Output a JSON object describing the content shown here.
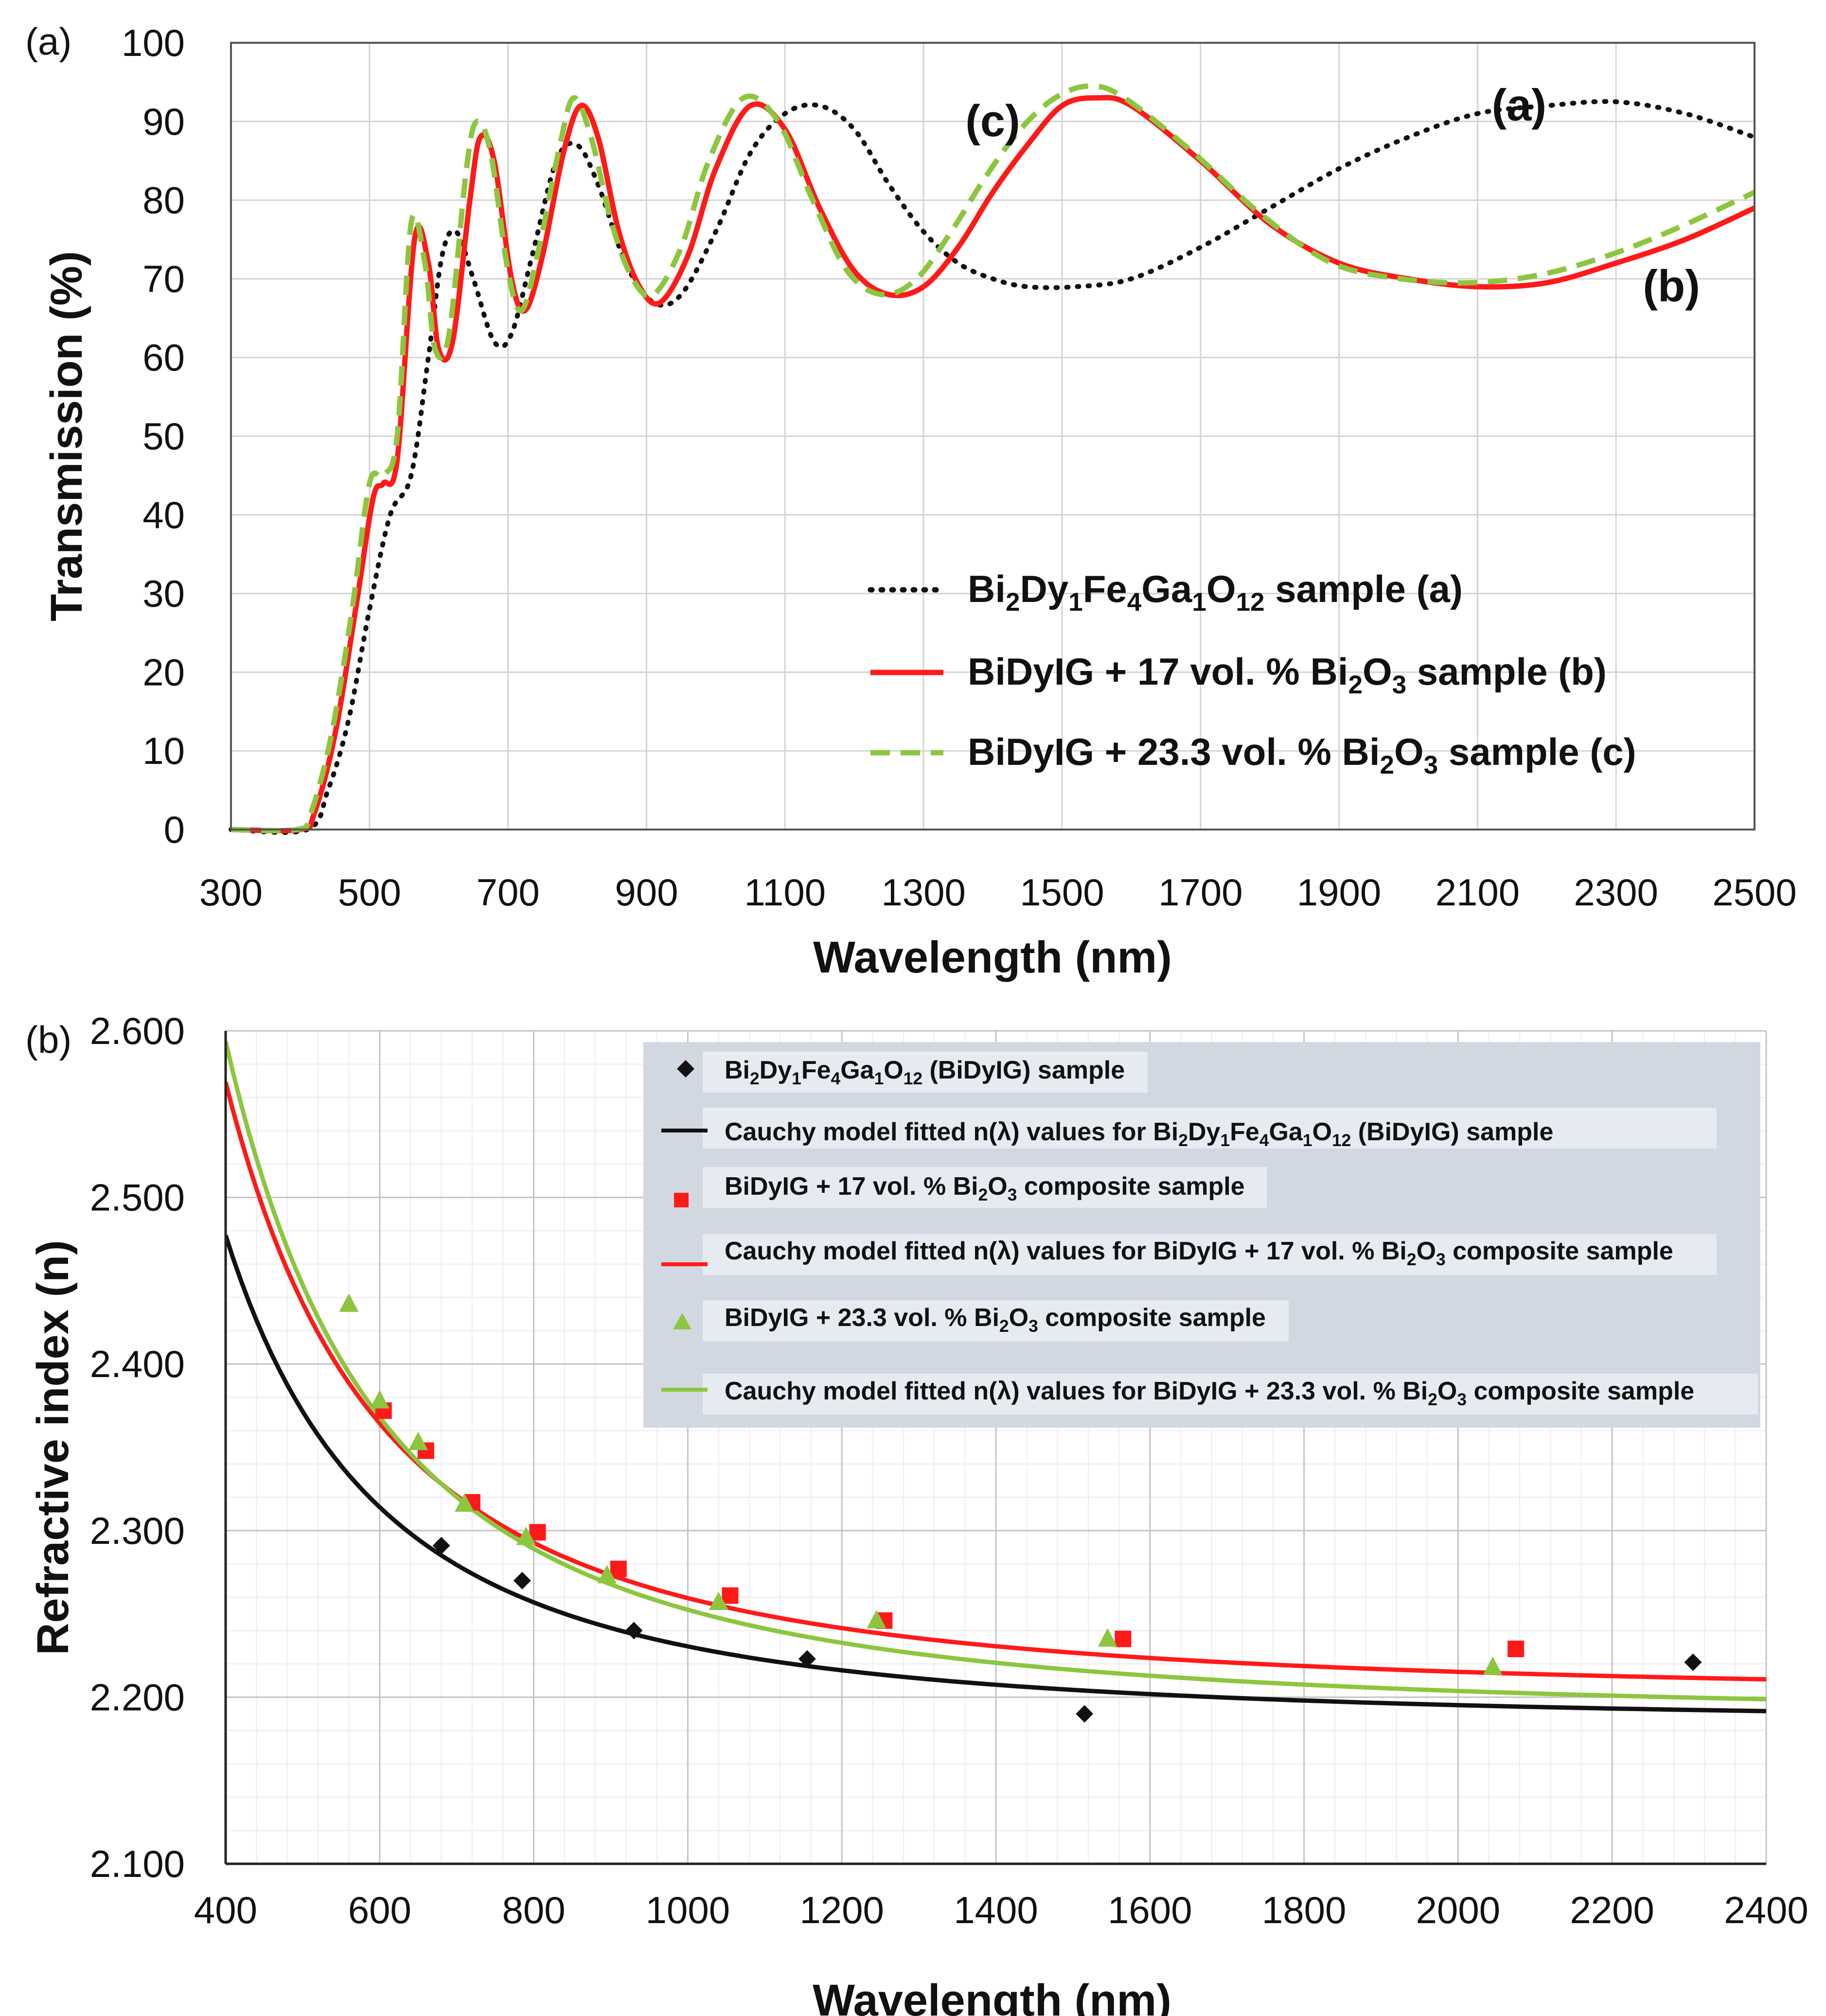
{
  "chart_data": [
    {
      "panel_label": "(a)",
      "type": "line",
      "xlabel": "Wavelength (nm)",
      "ylabel": "Transmission (%)",
      "xlim": [
        300,
        2500
      ],
      "ylim": [
        0,
        100
      ],
      "x_ticks": [
        "300",
        "500",
        "700",
        "900",
        "1100",
        "1300",
        "1500",
        "1700",
        "1900",
        "2100",
        "2300",
        "2500"
      ],
      "y_ticks": [
        "0",
        "10",
        "20",
        "30",
        "40",
        "50",
        "60",
        "70",
        "80",
        "90",
        "100"
      ],
      "grid": true,
      "legend_position": "bottom-right",
      "series": [
        {
          "key": "a",
          "legend": "Bi₂Dy₁Fe₄Ga₁O₁₂ sample (a)",
          "color": "#111111",
          "style": "dotted",
          "points": [
            [
              300,
              0
            ],
            [
              410,
              0
            ],
            [
              440,
              5
            ],
            [
              470,
              14
            ],
            [
              500,
              28
            ],
            [
              530,
              40
            ],
            [
              560,
              45
            ],
            [
              585,
              60
            ],
            [
              605,
              73
            ],
            [
              625,
              76
            ],
            [
              650,
              70
            ],
            [
              680,
              62
            ],
            [
              705,
              63
            ],
            [
              735,
              73
            ],
            [
              770,
              85
            ],
            [
              800,
              87
            ],
            [
              830,
              82
            ],
            [
              870,
              72
            ],
            [
              910,
              67
            ],
            [
              950,
              68
            ],
            [
              1000,
              76
            ],
            [
              1050,
              86
            ],
            [
              1100,
              91
            ],
            [
              1150,
              92
            ],
            [
              1200,
              89
            ],
            [
              1250,
              82
            ],
            [
              1300,
              76
            ],
            [
              1350,
              72
            ],
            [
              1400,
              70
            ],
            [
              1450,
              69
            ],
            [
              1520,
              69
            ],
            [
              1600,
              70
            ],
            [
              1700,
              74
            ],
            [
              1800,
              79
            ],
            [
              1900,
              84
            ],
            [
              2000,
              88
            ],
            [
              2100,
              91
            ],
            [
              2200,
              92
            ],
            [
              2300,
              92.5
            ],
            [
              2400,
              91
            ],
            [
              2500,
              88
            ]
          ]
        },
        {
          "key": "b",
          "legend": "BiDyIG + 17 vol. % Bi₂O₃ sample (b)",
          "color": "#ff1a1a",
          "style": "solid",
          "points": [
            [
              300,
              0
            ],
            [
              400,
              0
            ],
            [
              420,
              2
            ],
            [
              450,
              12
            ],
            [
              480,
              28
            ],
            [
              505,
              42
            ],
            [
              520,
              44
            ],
            [
              540,
              47
            ],
            [
              565,
              75
            ],
            [
              585,
              72
            ],
            [
              600,
              61
            ],
            [
              620,
              62
            ],
            [
              645,
              80
            ],
            [
              660,
              88
            ],
            [
              680,
              85
            ],
            [
              705,
              70
            ],
            [
              725,
              66
            ],
            [
              750,
              73
            ],
            [
              780,
              86
            ],
            [
              805,
              92
            ],
            [
              830,
              88
            ],
            [
              860,
              76
            ],
            [
              890,
              69
            ],
            [
              920,
              67
            ],
            [
              960,
              73
            ],
            [
              1000,
              84
            ],
            [
              1050,
              92
            ],
            [
              1100,
              89
            ],
            [
              1150,
              79
            ],
            [
              1200,
              71
            ],
            [
              1250,
              68
            ],
            [
              1300,
              69
            ],
            [
              1350,
              74
            ],
            [
              1400,
              81
            ],
            [
              1450,
              87
            ],
            [
              1500,
              92
            ],
            [
              1550,
              93
            ],
            [
              1600,
              92
            ],
            [
              1700,
              85
            ],
            [
              1800,
              77
            ],
            [
              1900,
              72
            ],
            [
              2000,
              70
            ],
            [
              2100,
              69
            ],
            [
              2200,
              69.5
            ],
            [
              2300,
              72
            ],
            [
              2400,
              75
            ],
            [
              2500,
              79
            ]
          ]
        },
        {
          "key": "c",
          "legend": "BiDyIG + 23.3 vol. % Bi₂O₃ sample (c)",
          "color": "#8cc63f",
          "style": "dashed",
          "points": [
            [
              300,
              0
            ],
            [
              395,
              0
            ],
            [
              415,
              2
            ],
            [
              445,
              12
            ],
            [
              475,
              28
            ],
            [
              500,
              44
            ],
            [
              520,
              45
            ],
            [
              540,
              50
            ],
            [
              560,
              77
            ],
            [
              580,
              72
            ],
            [
              595,
              61
            ],
            [
              615,
              63
            ],
            [
              640,
              84
            ],
            [
              655,
              90
            ],
            [
              675,
              86
            ],
            [
              700,
              71
            ],
            [
              720,
              66
            ],
            [
              745,
              74
            ],
            [
              775,
              87
            ],
            [
              795,
              93
            ],
            [
              820,
              88
            ],
            [
              850,
              77
            ],
            [
              880,
              70
            ],
            [
              910,
              68
            ],
            [
              950,
              74
            ],
            [
              990,
              85
            ],
            [
              1040,
              93
            ],
            [
              1090,
              90
            ],
            [
              1140,
              80
            ],
            [
              1190,
              71
            ],
            [
              1240,
              68
            ],
            [
              1290,
              70
            ],
            [
              1340,
              76
            ],
            [
              1390,
              83
            ],
            [
              1440,
              89
            ],
            [
              1490,
              93
            ],
            [
              1540,
              94.5
            ],
            [
              1590,
              93
            ],
            [
              1690,
              86
            ],
            [
              1790,
              78
            ],
            [
              1890,
              72
            ],
            [
              1990,
              70
            ],
            [
              2090,
              69.5
            ],
            [
              2190,
              70.5
            ],
            [
              2290,
              73
            ],
            [
              2390,
              76.5
            ],
            [
              2500,
              81
            ]
          ]
        }
      ],
      "annotations": [
        {
          "text": "(a)",
          "x": 2160,
          "y": 92
        },
        {
          "text": "(b)",
          "x": 2380,
          "y": 69
        },
        {
          "text": "(c)",
          "x": 1400,
          "y": 90
        }
      ]
    },
    {
      "panel_label": "(b)",
      "type": "scatter+line",
      "xlabel": "Wavelength (nm)",
      "ylabel": "Refractive index (n)",
      "xlim": [
        400,
        2400
      ],
      "ylim": [
        2.1,
        2.6
      ],
      "x_ticks": [
        "400",
        "600",
        "800",
        "1000",
        "1200",
        "1400",
        "1600",
        "1800",
        "2000",
        "2200",
        "2400"
      ],
      "y_ticks": [
        "2.100",
        "2.200",
        "2.300",
        "2.400",
        "2.500",
        "2.600"
      ],
      "grid": true,
      "legend_position": "top-right",
      "scatter_series": [
        {
          "legend": "Bi₂Dy₁Fe₄Ga₁O₁₂ (BiDyIG) sample",
          "marker": "diamond",
          "color": "#111111",
          "points": [
            [
              680,
              2.291
            ],
            [
              785,
              2.27
            ],
            [
              930,
              2.24
            ],
            [
              1155,
              2.223
            ],
            [
              1515,
              2.19
            ],
            [
              2305,
              2.221
            ]
          ]
        },
        {
          "legend": "BiDyIG + 17 vol. % Bi₂O₃ composite sample",
          "marker": "square",
          "color": "#ff1a1a",
          "points": [
            [
              605,
              2.372
            ],
            [
              660,
              2.348
            ],
            [
              720,
              2.317
            ],
            [
              805,
              2.299
            ],
            [
              910,
              2.277
            ],
            [
              1055,
              2.261
            ],
            [
              1255,
              2.246
            ],
            [
              1565,
              2.235
            ],
            [
              2075,
              2.229
            ]
          ]
        },
        {
          "legend": "BiDyIG + 23.3 vol. % Bi₂O₃ composite sample",
          "marker": "triangle",
          "color": "#8cc63f",
          "points": [
            [
              560,
              2.436
            ],
            [
              600,
              2.378
            ],
            [
              650,
              2.353
            ],
            [
              710,
              2.316
            ],
            [
              790,
              2.296
            ],
            [
              895,
              2.273
            ],
            [
              1040,
              2.257
            ],
            [
              1245,
              2.246
            ],
            [
              1545,
              2.235
            ],
            [
              2045,
              2.218
            ]
          ]
        }
      ],
      "fit_series": [
        {
          "legend": "Cauchy model fitted n(λ) values for Bi₂Dy₁Fe₄Ga₁O₁₂ (BiDyIG) sample",
          "color": "#111111",
          "A": 2.1835,
          "B": 47000
        },
        {
          "legend": "Cauchy model fitted n(λ) values for BiDyIG + 17 vol. % Bi₂O₃ composite sample",
          "color": "#ff1a1a",
          "A": 2.2005,
          "B": 59000
        },
        {
          "legend": "Cauchy model fitted n(λ) values for BiDyIG + 23.3 vol. % Bi₂O₃ composite sample",
          "color": "#8cc63f",
          "A": 2.1875,
          "B": 65000
        }
      ]
    }
  ]
}
